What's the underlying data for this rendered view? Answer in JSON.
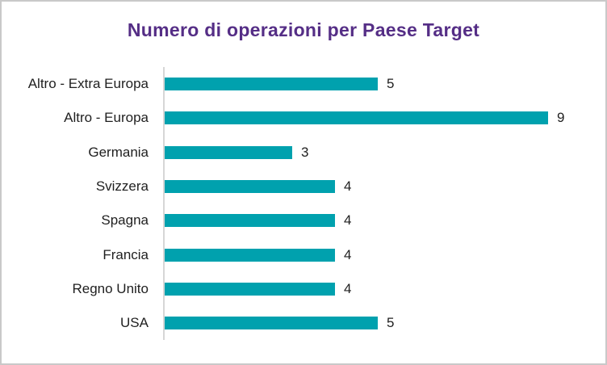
{
  "chart_data": {
    "type": "bar",
    "orientation": "horizontal",
    "title": "Numero di operazioni per Paese Target",
    "categories": [
      "Altro - Extra Europa",
      "Altro - Europa",
      "Germania",
      "Svizzera",
      "Spagna",
      "Francia",
      "Regno Unito",
      "USA"
    ],
    "values": [
      5,
      9,
      3,
      4,
      4,
      4,
      4,
      5
    ],
    "xlim": [
      0,
      9
    ],
    "xlabel": "",
    "ylabel": "",
    "data_labels": true,
    "grid": false,
    "legend": false,
    "colors": {
      "bar": "#00a1ae",
      "title": "#552e86",
      "label_text": "#1f1f1f",
      "axis_line": "#d6d6d6",
      "background": "#ffffff"
    }
  }
}
